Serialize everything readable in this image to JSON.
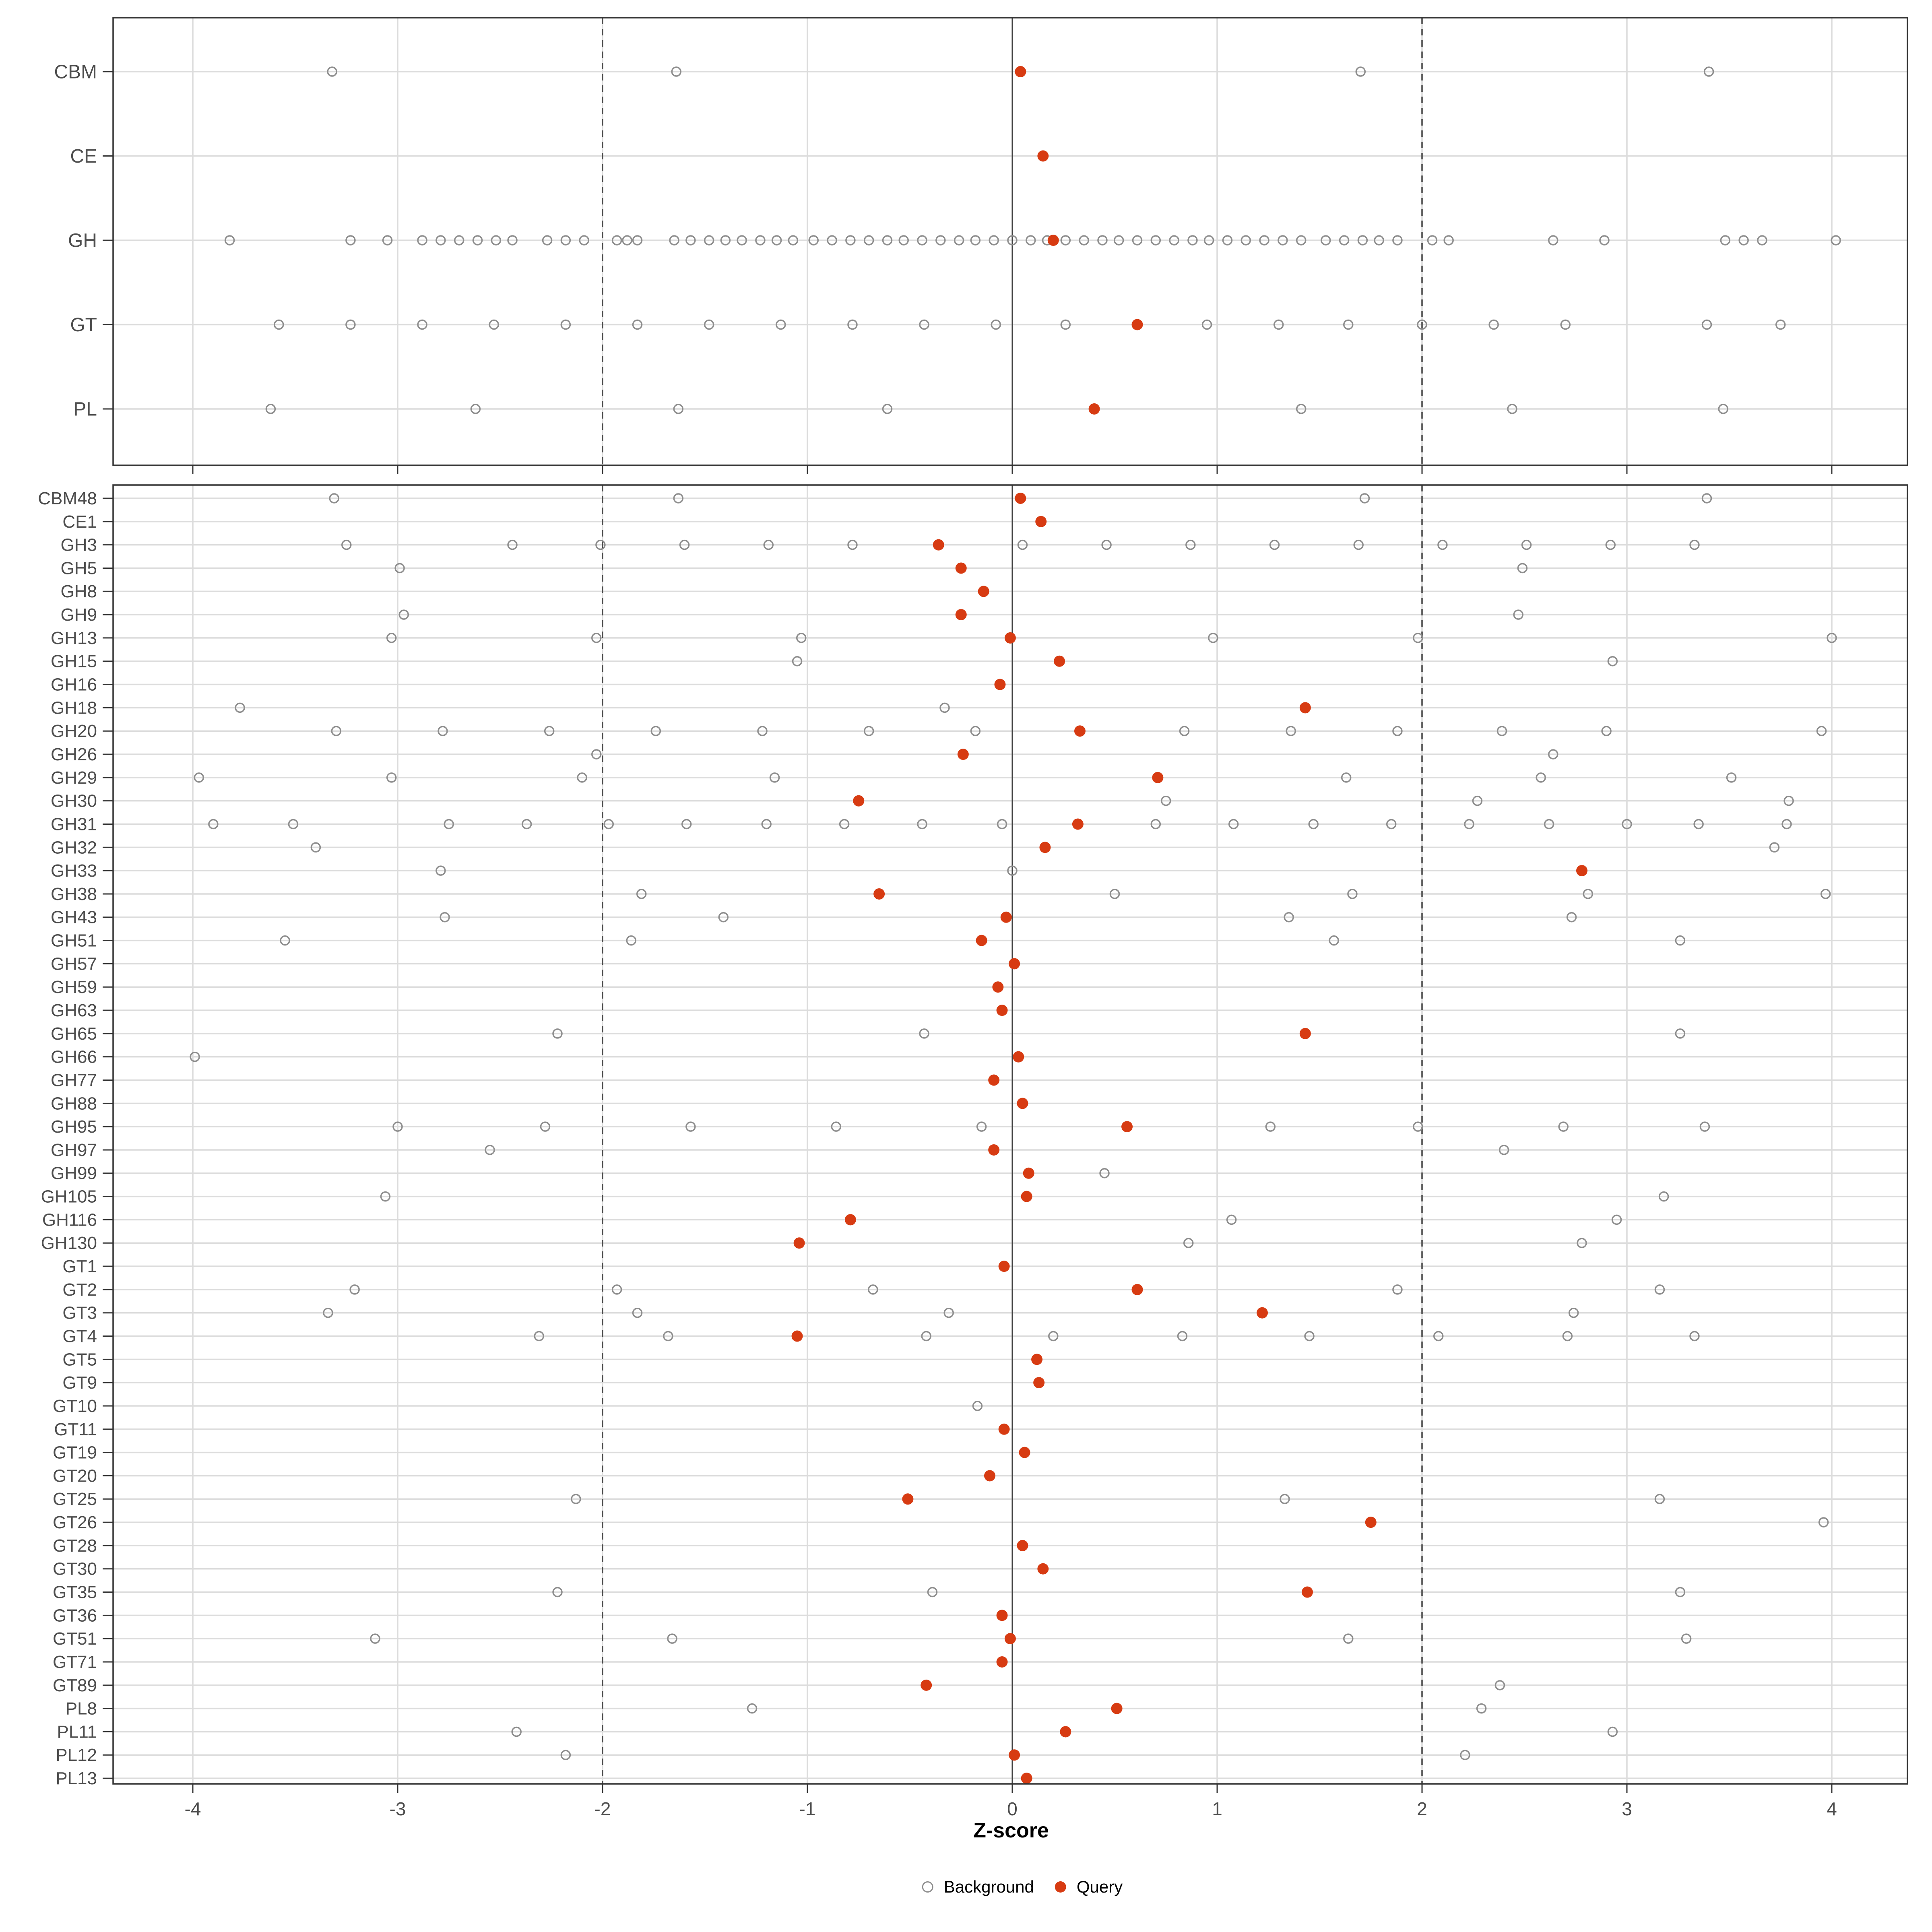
{
  "axis": {
    "x_title": "Z-score"
  },
  "legend": {
    "background_label": "Background",
    "query_label": "Query"
  },
  "colors": {
    "query": "#D73B12",
    "background_stroke": "#8E8E8E",
    "grid": "#DCDCDC",
    "panel_border": "#333333",
    "zero_line": "#404040",
    "ref_dashed": "#4A4A4A",
    "tick_text": "#4D4D4D",
    "label_text": "#4D4D4D"
  },
  "chart_data": {
    "type": "scatter",
    "xlabel": "Z-score",
    "x_ticks": [
      -4,
      -3,
      -2,
      -1,
      0,
      1,
      2,
      3,
      4
    ],
    "xlim": [
      -4.39,
      4.37
    ],
    "reference_lines": {
      "solid": 0,
      "dashed": [
        -2,
        2
      ]
    },
    "grid": "on",
    "legend_position": "bottom",
    "series_names": [
      "Background",
      "Query"
    ],
    "panels": [
      {
        "name": "families",
        "rows": [
          {
            "label": "CBM",
            "query": 0.04,
            "background": [
              -3.32,
              -1.64,
              1.7,
              3.4
            ]
          },
          {
            "label": "CE",
            "query": 0.15,
            "background": []
          },
          {
            "label": "GH",
            "query": 0.2,
            "background": [
              -3.82,
              -3.23,
              -3.05,
              -2.88,
              -2.79,
              -2.7,
              -2.61,
              -2.52,
              -2.44,
              -2.27,
              -2.18,
              -2.09,
              -1.93,
              -1.88,
              -1.83,
              -1.65,
              -1.57,
              -1.48,
              -1.4,
              -1.32,
              -1.23,
              -1.15,
              -1.07,
              -0.97,
              -0.88,
              -0.79,
              -0.7,
              -0.61,
              -0.53,
              -0.44,
              -0.35,
              -0.26,
              -0.18,
              -0.09,
              0.0,
              0.09,
              0.17,
              0.26,
              0.35,
              0.44,
              0.52,
              0.61,
              0.7,
              0.79,
              0.88,
              0.96,
              1.05,
              1.14,
              1.23,
              1.32,
              1.41,
              1.53,
              1.62,
              1.71,
              1.79,
              1.88,
              2.05,
              2.13,
              2.64,
              2.89,
              3.48,
              3.57,
              3.66,
              4.02
            ]
          },
          {
            "label": "GT",
            "query": 0.61,
            "background": [
              -3.58,
              -3.23,
              -2.88,
              -2.53,
              -2.18,
              -1.83,
              -1.48,
              -1.13,
              -0.78,
              -0.43,
              -0.08,
              0.26,
              0.95,
              1.3,
              1.64,
              2.0,
              2.35,
              2.7,
              3.39,
              3.75
            ]
          },
          {
            "label": "PL",
            "query": 0.4,
            "background": [
              -3.62,
              -2.62,
              -1.63,
              -0.61,
              1.41,
              2.44,
              3.47
            ]
          }
        ]
      },
      {
        "name": "subfamilies",
        "rows": [
          {
            "label": "CBM48",
            "query": 0.04,
            "background": [
              -3.31,
              -1.63,
              1.72,
              3.39
            ]
          },
          {
            "label": "CE1",
            "query": 0.14,
            "background": []
          },
          {
            "label": "GH3",
            "query": -0.36,
            "background": [
              -3.25,
              -2.44,
              -2.01,
              -1.6,
              -1.19,
              -0.78,
              0.05,
              0.46,
              0.87,
              1.28,
              1.69,
              2.1,
              2.51,
              2.92,
              3.33
            ]
          },
          {
            "label": "GH5",
            "query": -0.25,
            "background": [
              -2.99,
              2.49
            ]
          },
          {
            "label": "GH8",
            "query": -0.14,
            "background": []
          },
          {
            "label": "GH9",
            "query": -0.25,
            "background": [
              -2.97,
              2.47
            ]
          },
          {
            "label": "GH13",
            "query": -0.01,
            "background": [
              -3.03,
              -2.03,
              -1.03,
              0.98,
              1.98,
              4.0
            ]
          },
          {
            "label": "GH15",
            "query": 0.23,
            "background": [
              -1.05,
              2.93
            ]
          },
          {
            "label": "GH16",
            "query": -0.06,
            "background": []
          },
          {
            "label": "GH18",
            "query": 1.43,
            "background": [
              -3.77,
              -0.33
            ]
          },
          {
            "label": "GH20",
            "query": 0.33,
            "background": [
              -3.3,
              -2.78,
              -2.26,
              -1.74,
              -1.22,
              -0.7,
              -0.18,
              0.84,
              1.36,
              1.88,
              2.39,
              2.9,
              3.95
            ]
          },
          {
            "label": "GH26",
            "query": -0.24,
            "background": [
              -2.03,
              2.64
            ]
          },
          {
            "label": "GH29",
            "query": 0.71,
            "background": [
              -3.97,
              -3.03,
              -2.1,
              -1.16,
              1.63,
              2.58,
              3.51
            ]
          },
          {
            "label": "GH30",
            "query": -0.75,
            "background": [
              0.75,
              2.27,
              3.79
            ]
          },
          {
            "label": "GH31",
            "query": 0.32,
            "background": [
              -3.9,
              -3.51,
              -2.75,
              -2.37,
              -1.97,
              -1.59,
              -1.2,
              -0.82,
              -0.44,
              -0.05,
              0.7,
              1.08,
              1.47,
              1.85,
              2.23,
              2.62,
              3.0,
              3.35,
              3.78
            ]
          },
          {
            "label": "GH32",
            "query": 0.16,
            "background": [
              -3.4,
              3.72
            ]
          },
          {
            "label": "GH33",
            "query": 2.78,
            "background": [
              -2.79,
              0.0
            ]
          },
          {
            "label": "GH38",
            "query": -0.65,
            "background": [
              -1.81,
              0.5,
              1.66,
              2.81,
              3.97
            ]
          },
          {
            "label": "GH43",
            "query": -0.03,
            "background": [
              -2.77,
              -1.41,
              1.35,
              2.73
            ]
          },
          {
            "label": "GH51",
            "query": -0.15,
            "background": [
              -3.55,
              -1.86,
              1.57,
              3.26
            ]
          },
          {
            "label": "GH57",
            "query": 0.01,
            "background": []
          },
          {
            "label": "GH59",
            "query": -0.07,
            "background": []
          },
          {
            "label": "GH63",
            "query": -0.05,
            "background": []
          },
          {
            "label": "GH65",
            "query": 1.43,
            "background": [
              -2.22,
              -0.43,
              3.26
            ]
          },
          {
            "label": "GH66",
            "query": 0.03,
            "background": [
              -3.99
            ]
          },
          {
            "label": "GH77",
            "query": -0.09,
            "background": []
          },
          {
            "label": "GH88",
            "query": 0.05,
            "background": []
          },
          {
            "label": "GH95",
            "query": 0.56,
            "background": [
              -3.0,
              -2.28,
              -1.57,
              -0.86,
              -0.15,
              1.26,
              1.98,
              2.69,
              3.38
            ]
          },
          {
            "label": "GH97",
            "query": -0.09,
            "background": [
              -2.55,
              2.4
            ]
          },
          {
            "label": "GH99",
            "query": 0.08,
            "background": [
              0.45
            ]
          },
          {
            "label": "GH105",
            "query": 0.07,
            "background": [
              -3.06,
              3.18
            ]
          },
          {
            "label": "GH116",
            "query": -0.79,
            "background": [
              1.07,
              2.95
            ]
          },
          {
            "label": "GH130",
            "query": -1.04,
            "background": [
              0.86,
              2.78
            ]
          },
          {
            "label": "GT1",
            "query": -0.04,
            "background": []
          },
          {
            "label": "GT2",
            "query": 0.61,
            "background": [
              -3.21,
              -1.93,
              -0.68,
              1.88,
              3.16
            ]
          },
          {
            "label": "GT3",
            "query": 1.22,
            "background": [
              -3.34,
              -1.83,
              -0.31,
              2.74
            ]
          },
          {
            "label": "GT4",
            "query": -1.05,
            "background": [
              -2.31,
              -1.68,
              -0.42,
              0.2,
              0.83,
              1.45,
              2.08,
              2.71,
              3.33
            ]
          },
          {
            "label": "GT5",
            "query": 0.12,
            "background": []
          },
          {
            "label": "GT9",
            "query": 0.13,
            "background": []
          },
          {
            "label": "GT10",
            "query": null,
            "background": [
              -0.17
            ]
          },
          {
            "label": "GT11",
            "query": -0.04,
            "background": []
          },
          {
            "label": "GT19",
            "query": 0.06,
            "background": []
          },
          {
            "label": "GT20",
            "query": -0.11,
            "background": []
          },
          {
            "label": "GT25",
            "query": -0.51,
            "background": [
              -2.13,
              1.33,
              3.16
            ]
          },
          {
            "label": "GT26",
            "query": 1.75,
            "background": [
              3.96
            ]
          },
          {
            "label": "GT28",
            "query": 0.05,
            "background": []
          },
          {
            "label": "GT30",
            "query": 0.15,
            "background": []
          },
          {
            "label": "GT35",
            "query": 1.44,
            "background": [
              -2.22,
              -0.39,
              3.26
            ]
          },
          {
            "label": "GT36",
            "query": -0.05,
            "background": []
          },
          {
            "label": "GT51",
            "query": -0.01,
            "background": [
              -3.11,
              -1.66,
              1.64,
              3.29
            ]
          },
          {
            "label": "GT71",
            "query": -0.05,
            "background": []
          },
          {
            "label": "GT89",
            "query": -0.42,
            "background": [
              2.38
            ]
          },
          {
            "label": "PL8",
            "query": 0.51,
            "background": [
              -1.27,
              2.29
            ]
          },
          {
            "label": "PL11",
            "query": 0.26,
            "background": [
              -2.42,
              2.93
            ]
          },
          {
            "label": "PL12",
            "query": 0.01,
            "background": [
              -2.18,
              2.21
            ]
          },
          {
            "label": "PL13",
            "query": 0.07,
            "background": []
          }
        ]
      }
    ]
  }
}
